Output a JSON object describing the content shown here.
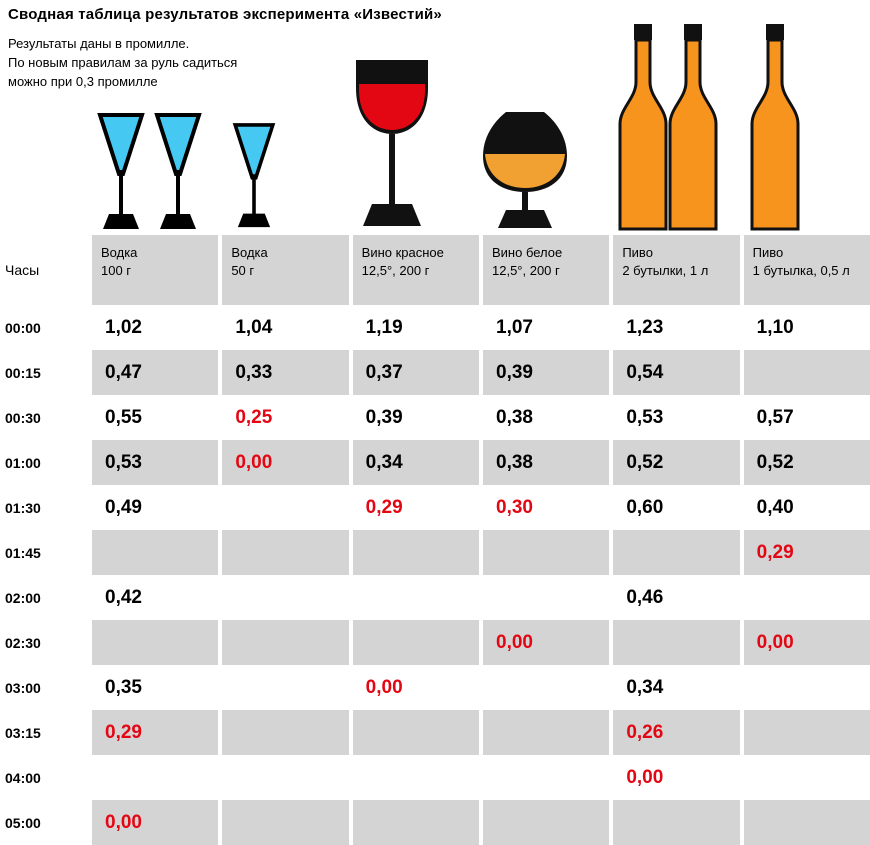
{
  "header": {
    "title": "Сводная таблица результатов эксперимента «Известий»",
    "subtitle_lines": [
      "Результаты даны в промилле.",
      "По новым правилам за руль садиться",
      "можно при 0,3 промилле"
    ]
  },
  "chart_data": {
    "type": "table",
    "title": "Сводная таблица результатов эксперимента «Известий»",
    "hours_label": "Часы",
    "columns": [
      {
        "label_line1": "Водка",
        "label_line2": "100 г",
        "icon": "vodka-glass-icon"
      },
      {
        "label_line1": "Водка",
        "label_line2": "50 г",
        "icon": "vodka-glass-icon"
      },
      {
        "label_line1": "Вино красное",
        "label_line2": "12,5°, 200 г",
        "icon": "red-wine-glass-icon"
      },
      {
        "label_line1": "Вино белое",
        "label_line2": "12,5°, 200 г",
        "icon": "snifter-glass-icon"
      },
      {
        "label_line1": "Пиво",
        "label_line2": "2 бутылки, 1 л",
        "icon": "beer-bottle-icon"
      },
      {
        "label_line1": "Пиво",
        "label_line2": "1 бутылка, 0,5 л",
        "icon": "beer-bottle-icon"
      }
    ],
    "rows": [
      {
        "time": "00:00",
        "values": [
          "1,02",
          "1,04",
          "1,19",
          "1,07",
          "1,23",
          "1,10"
        ],
        "red": [
          false,
          false,
          false,
          false,
          false,
          false
        ]
      },
      {
        "time": "00:15",
        "values": [
          "0,47",
          "0,33",
          "0,37",
          "0,39",
          "0,54",
          ""
        ],
        "red": [
          false,
          false,
          false,
          false,
          false,
          false
        ]
      },
      {
        "time": "00:30",
        "values": [
          "0,55",
          "0,25",
          "0,39",
          "0,38",
          "0,53",
          "0,57"
        ],
        "red": [
          false,
          true,
          false,
          false,
          false,
          false
        ]
      },
      {
        "time": "01:00",
        "values": [
          "0,53",
          "0,00",
          "0,34",
          "0,38",
          "0,52",
          "0,52"
        ],
        "red": [
          false,
          true,
          false,
          false,
          false,
          false
        ]
      },
      {
        "time": "01:30",
        "values": [
          "0,49",
          "",
          "0,29",
          "0,30",
          "0,60",
          "0,40"
        ],
        "red": [
          false,
          false,
          true,
          true,
          false,
          false
        ]
      },
      {
        "time": "01:45",
        "values": [
          "",
          "",
          "",
          "",
          "",
          "0,29"
        ],
        "red": [
          false,
          false,
          false,
          false,
          false,
          true
        ]
      },
      {
        "time": "02:00",
        "values": [
          "0,42",
          "",
          "",
          "",
          "0,46",
          ""
        ],
        "red": [
          false,
          false,
          false,
          false,
          false,
          false
        ]
      },
      {
        "time": "02:30",
        "values": [
          "",
          "",
          "",
          "0,00",
          "",
          "0,00"
        ],
        "red": [
          false,
          false,
          false,
          true,
          false,
          true
        ]
      },
      {
        "time": "03:00",
        "values": [
          "0,35",
          "",
          "0,00",
          "",
          "0,34",
          ""
        ],
        "red": [
          false,
          false,
          true,
          false,
          false,
          false
        ]
      },
      {
        "time": "03:15",
        "values": [
          "0,29",
          "",
          "",
          "",
          "0,26",
          ""
        ],
        "red": [
          true,
          false,
          false,
          false,
          true,
          false
        ]
      },
      {
        "time": "04:00",
        "values": [
          "",
          "",
          "",
          "",
          "0,00",
          ""
        ],
        "red": [
          false,
          false,
          false,
          false,
          true,
          false
        ]
      },
      {
        "time": "05:00",
        "values": [
          "0,00",
          "",
          "",
          "",
          "",
          ""
        ],
        "red": [
          true,
          false,
          false,
          false,
          false,
          false
        ]
      }
    ]
  },
  "colors": {
    "red_value": "#e30613",
    "black_value": "#000000",
    "cell_gray": "#d4d4d4",
    "vodka_liquid": "#45c8f1",
    "red_wine_liquid": "#e30613",
    "white_wine_liquid": "#f0a132",
    "beer_bottle_orange": "#f7941d"
  }
}
